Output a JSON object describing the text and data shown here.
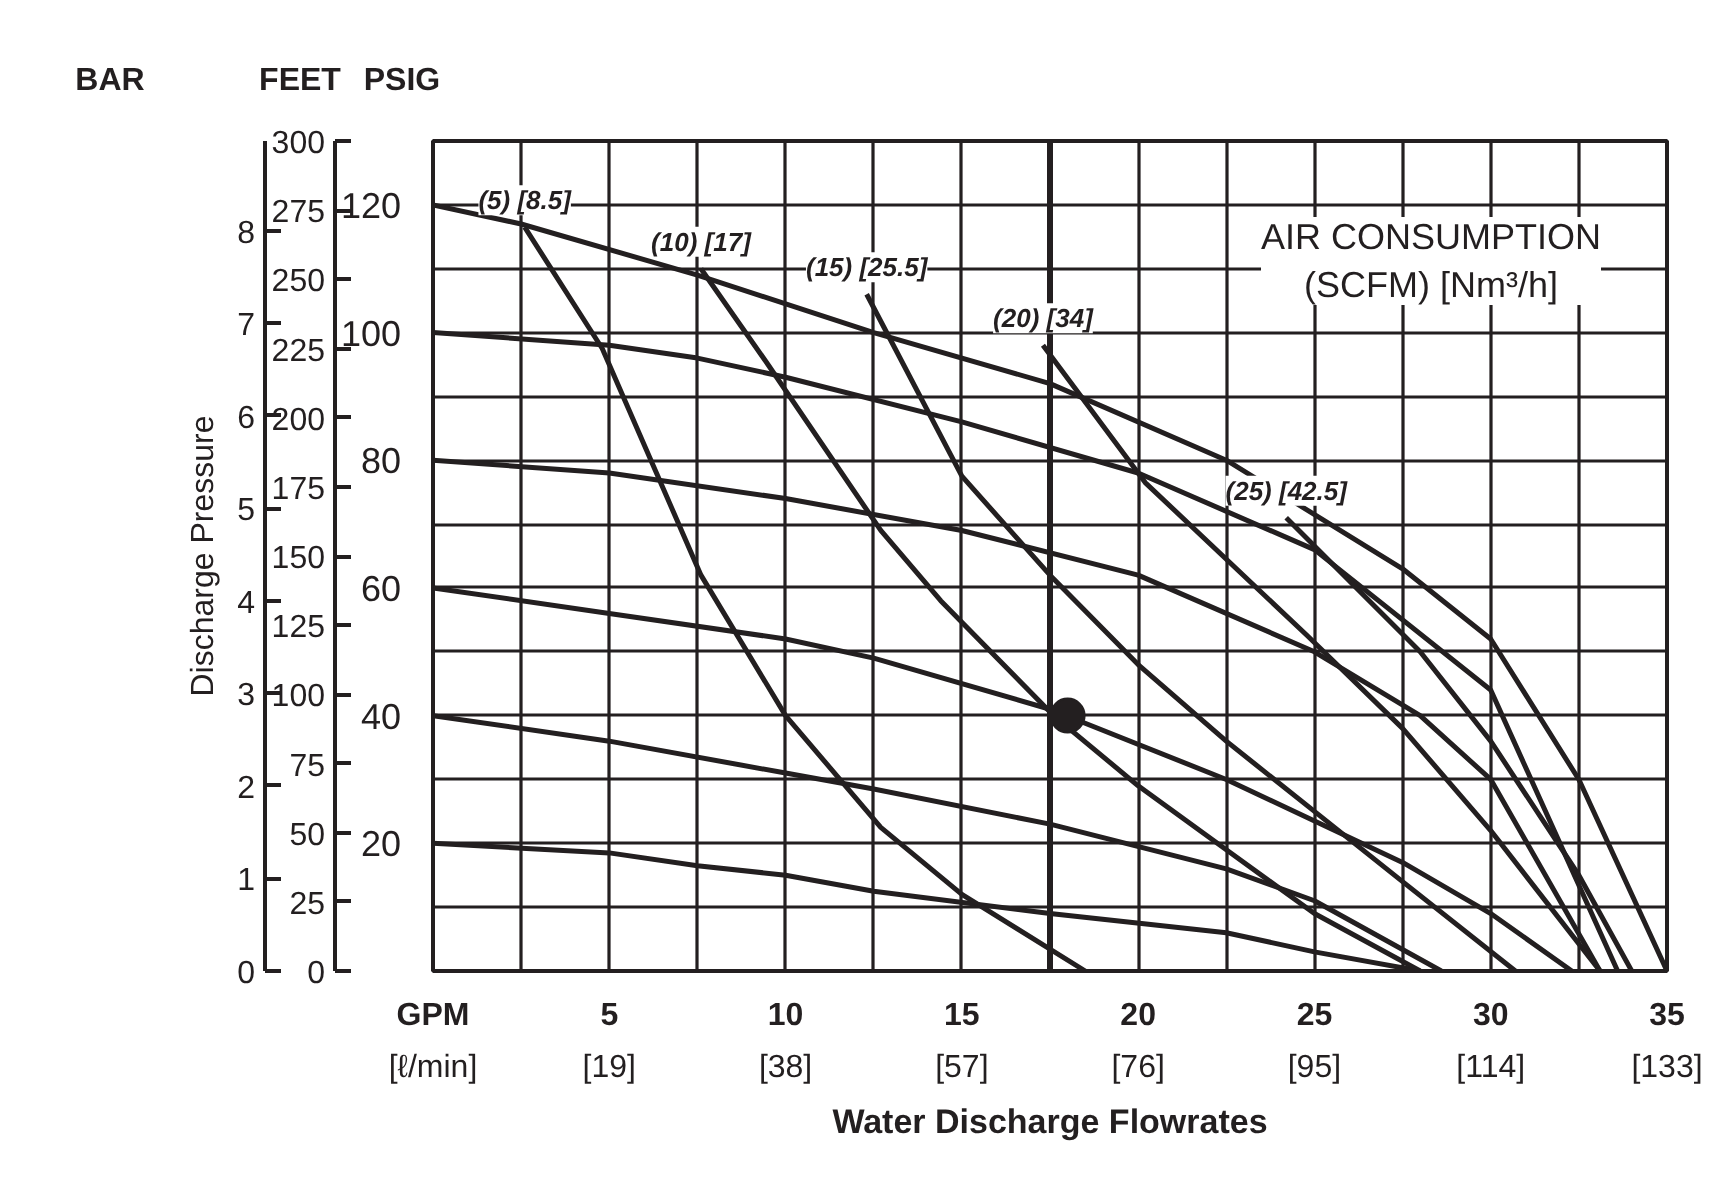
{
  "chart_data": {
    "type": "line",
    "xlabel": "GPM",
    "x2label": "[ℓ/min]",
    "ylabel": "PSIG",
    "y2label": "FEET",
    "y3label": "BAR",
    "annotations": [
      "Discharge Pressure",
      "Water Discharge Flowrates",
      "AIR CONSUMPTION\n(SCFM) [Nm³/h]"
    ],
    "xlim": [
      0,
      35
    ],
    "xticks": [
      {
        "value": 2.5,
        "label": null
      },
      5,
      {
        "value": 7.5,
        "label": null
      },
      10,
      {
        "value": 12.5,
        "label": null
      },
      15,
      {
        "value": 17.5,
        "label": null
      },
      20,
      {
        "value": 22.5,
        "label": null
      },
      25,
      {
        "value": 27.5,
        "label": null
      },
      30,
      {
        "value": 32.5,
        "label": null
      },
      35
    ],
    "x2lim": [
      0,
      133
    ],
    "x2ticks": [
      {
        "value": 19,
        "label": "[19]"
      },
      {
        "value": 38,
        "label": "[38]"
      },
      {
        "value": 57,
        "label": "[57]"
      },
      {
        "value": 76,
        "label": "[76]"
      },
      {
        "value": 95,
        "label": "[95]"
      },
      {
        "value": 114,
        "label": "[114]"
      },
      {
        "value": 133,
        "label": "[133]"
      }
    ],
    "ylim": [
      0,
      130
    ],
    "yticks": [
      {
        "value": 10,
        "label": null
      },
      20,
      {
        "value": 30,
        "label": null
      },
      40,
      {
        "value": 50,
        "label": null
      },
      60,
      {
        "value": 70,
        "label": null
      },
      80,
      {
        "value": 90,
        "label": null
      },
      100,
      {
        "value": 110,
        "label": null
      },
      120
    ],
    "y2lim": [
      0,
      300
    ],
    "y2ticks": [
      0,
      25,
      50,
      75,
      100,
      125,
      150,
      175,
      200,
      225,
      250,
      275,
      300
    ],
    "y3lim": [
      0,
      8.97
    ],
    "y3ticks": [
      0,
      1,
      2,
      3,
      4,
      5,
      6,
      7,
      8
    ],
    "grid": true,
    "line_style": "solid",
    "marker": "none",
    "ref_lines": [
      {
        "axis": "x",
        "value": 17.5
      }
    ],
    "series": [
      {
        "color": "#231f20",
        "x": [
          0,
          5,
          7.5,
          10,
          12.5,
          17.5,
          22.5,
          25,
          28
        ],
        "values": [
          20,
          18.5,
          16.5,
          15,
          12.5,
          9,
          6,
          3,
          0
        ]
      },
      {
        "color": "#231f20",
        "x": [
          0,
          5,
          10,
          12.5,
          17.5,
          22.5,
          25,
          28.6
        ],
        "values": [
          40,
          36,
          31,
          28.5,
          23,
          16,
          11,
          0
        ]
      },
      {
        "color": "#231f20",
        "x": [
          0,
          5,
          10,
          12.5,
          17.5,
          22.5,
          27.5,
          30,
          32.3
        ],
        "values": [
          60,
          56,
          52,
          49,
          41,
          30,
          17,
          9,
          0
        ]
      },
      {
        "color": "#231f20",
        "x": [
          0,
          5,
          10,
          15,
          20,
          25,
          28,
          30,
          33.1
        ],
        "values": [
          80,
          78,
          74,
          69,
          62,
          50,
          40,
          30,
          0
        ]
      },
      {
        "color": "#231f20",
        "x": [
          0,
          5,
          7.5,
          10,
          15,
          20,
          25,
          30,
          33.6
        ],
        "values": [
          100,
          98,
          96,
          93,
          86,
          78,
          66,
          44,
          0
        ]
      },
      {
        "color": "#231f20",
        "x": [
          0,
          2.5,
          7.5,
          12.5,
          17.5,
          22.5,
          27.5,
          30,
          32.5,
          35
        ],
        "values": [
          120,
          117,
          109,
          100,
          92,
          80,
          63,
          52,
          30,
          0
        ]
      },
      {
        "name": "(5) [8.5]",
        "color": "#231f20",
        "x": [
          2.6,
          4.8,
          7.6,
          10,
          12.7,
          15,
          18.5
        ],
        "values": [
          116.5,
          97.5,
          62,
          40,
          22.5,
          12,
          0
        ]
      },
      {
        "name": "(10) [17]",
        "color": "#231f20",
        "x": [
          7.6,
          9.5,
          12.7,
          14.4,
          17.6,
          20,
          22.5,
          25,
          28
        ],
        "values": [
          110,
          95,
          69,
          58,
          40,
          29,
          19,
          9,
          0
        ]
      },
      {
        "name": "(15) [25.5]",
        "color": "#231f20",
        "x": [
          12.3,
          15,
          17.5,
          20,
          22.5,
          25,
          27.5,
          30.7
        ],
        "values": [
          106,
          77.5,
          62,
          48,
          36,
          25,
          14,
          0
        ]
      },
      {
        "name": "(20) [34]",
        "color": "#231f20",
        "x": [
          17.3,
          20.2,
          24.8,
          27.5,
          30,
          33.1
        ],
        "values": [
          98,
          76.5,
          52.5,
          38,
          22,
          0
        ]
      },
      {
        "name": "(25) [42.5]",
        "color": "#231f20",
        "x": [
          24.2,
          28,
          30,
          32.5,
          34
        ],
        "values": [
          71,
          50,
          36,
          15,
          0
        ]
      },
      {
        "type": "scatter",
        "marker": "circle",
        "color": "#231f20",
        "x": [
          18
        ],
        "values": [
          40
        ]
      }
    ]
  }
}
